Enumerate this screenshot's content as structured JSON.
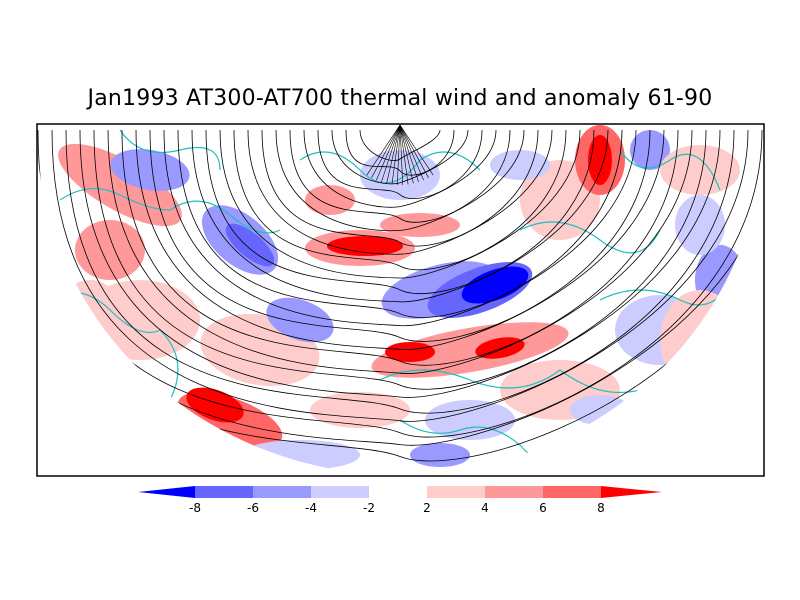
{
  "title": "Jan1993 AT300-AT700 thermal wind and anomaly 61-90",
  "colorbar": {
    "tick_labels": [
      "-8",
      "-6",
      "-4",
      "-2",
      "2",
      "4",
      "6",
      "8"
    ],
    "colors": [
      "#0000ff",
      "#6666ff",
      "#9999ff",
      "#ccccff",
      "#ffffff",
      "#ffcccc",
      "#ff9999",
      "#ff6666",
      "#ff0000"
    ]
  },
  "colors": {
    "coastline": "#1fbfbf",
    "streamline": "#000000",
    "frame": "#000000"
  }
}
